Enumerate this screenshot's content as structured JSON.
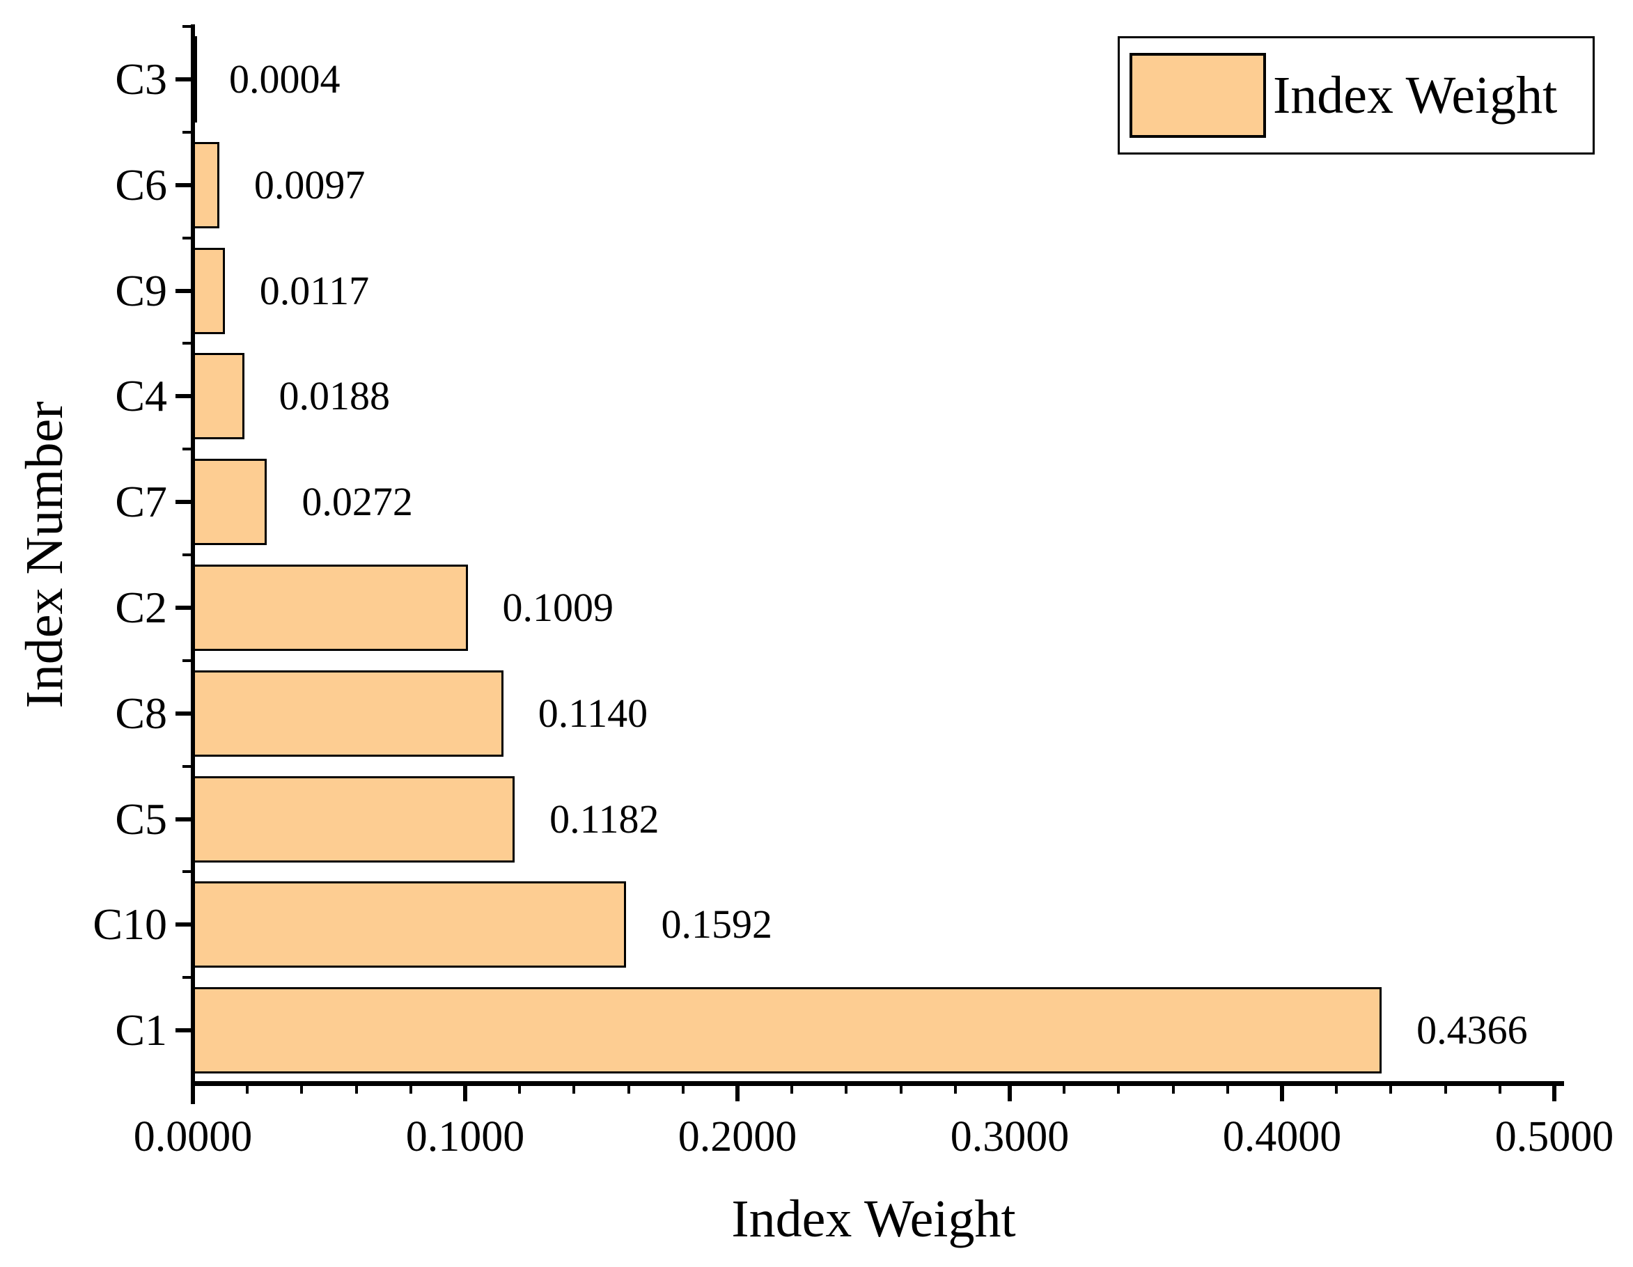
{
  "chart_data": {
    "type": "bar",
    "orientation": "horizontal",
    "xlabel": "Index Weight",
    "ylabel": "Index Number",
    "legend": {
      "label": "Index Weight",
      "position": "top-right"
    },
    "categories": [
      "C3",
      "C6",
      "C9",
      "C4",
      "C7",
      "C2",
      "C8",
      "C5",
      "C10",
      "C1"
    ],
    "values": [
      0.0004,
      0.0097,
      0.0117,
      0.0188,
      0.0272,
      0.1009,
      0.114,
      0.1182,
      0.1592,
      0.4366
    ],
    "value_labels": [
      "0.0004",
      "0.0097",
      "0.0117",
      "0.0188",
      "0.0272",
      "0.1009",
      "0.1140",
      "0.1182",
      "0.1592",
      "0.4366"
    ],
    "xlim": [
      0,
      0.5
    ],
    "x_tick_values": [
      0,
      0.1,
      0.2,
      0.3,
      0.4,
      0.5
    ],
    "x_tick_labels": [
      "0.0000",
      "0.1000",
      "0.2000",
      "0.3000",
      "0.4000",
      "0.5000"
    ],
    "x_minor_tick_step": 0.02,
    "grid": false,
    "colors": {
      "bar_fill": "#FDCD92",
      "bar_border": "#000000",
      "axis": "#000000",
      "text": "#000000",
      "background": "#FFFFFF"
    }
  }
}
